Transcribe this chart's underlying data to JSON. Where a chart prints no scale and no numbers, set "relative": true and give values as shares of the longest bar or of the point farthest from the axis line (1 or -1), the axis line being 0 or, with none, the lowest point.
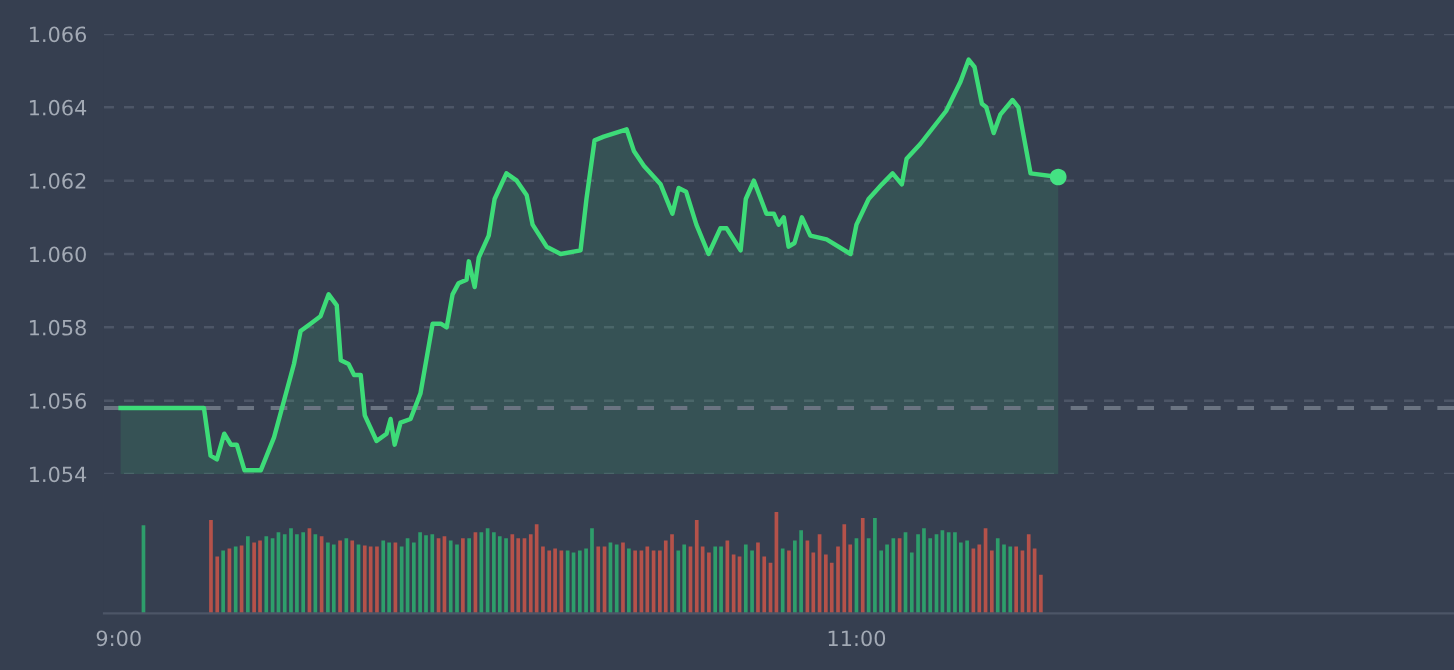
{
  "chart_data": [
    {
      "type": "area",
      "xlim": [
        8.96,
        12.62
      ],
      "ylim": [
        1.054,
        1.066
      ],
      "yticks": [
        1.054,
        1.056,
        1.058,
        {
          "value": 1.06,
          "label": "1.060"
        },
        1.062,
        1.064,
        1.066
      ],
      "tick_labels": "y",
      "grid": "y",
      "ref_lines": [
        {
          "axis": "y",
          "value": 1.0558,
          "color": "#6b7482",
          "line_style": "dashed"
        }
      ],
      "series": [
        {
          "color": "#3ddc78",
          "x": [
            9.005,
            9.231,
            9.249,
            9.266,
            9.286,
            9.304,
            9.32,
            9.341,
            9.385,
            9.421,
            9.475,
            9.493,
            9.52,
            9.547,
            9.569,
            9.591,
            9.602,
            9.623,
            9.638,
            9.656,
            9.667,
            9.699,
            9.726,
            9.737,
            9.748,
            9.764,
            9.791,
            9.818,
            9.851,
            9.873,
            9.889,
            9.905,
            9.921,
            9.943,
            9.949,
            9.965,
            9.976,
            10.003,
            10.019,
            10.051,
            10.079,
            10.106,
            10.122,
            10.16,
            10.198,
            10.252,
            10.268,
            10.29,
            10.315,
            10.377,
            10.397,
            10.424,
            10.469,
            10.501,
            10.518,
            10.538,
            10.566,
            10.599,
            10.631,
            10.648,
            10.686,
            10.7,
            10.722,
            10.756,
            10.776,
            10.789,
            10.803,
            10.816,
            10.832,
            10.852,
            10.875,
            10.919,
            10.984,
            11.0,
            11.033,
            11.069,
            11.098,
            11.123,
            11.136,
            11.173,
            11.243,
            11.282,
            11.304,
            11.32,
            11.34,
            11.352,
            11.372,
            11.39,
            11.423,
            11.439,
            11.472,
            11.547
          ],
          "values": [
            1.0558,
            1.0558,
            1.0545,
            1.0544,
            1.0551,
            1.0548,
            1.0548,
            1.0541,
            1.0541,
            1.055,
            1.057,
            1.0579,
            1.0581,
            1.0583,
            1.0589,
            1.0586,
            1.0571,
            1.057,
            1.0567,
            1.0567,
            1.0556,
            1.0549,
            1.0551,
            1.0555,
            1.0548,
            1.0554,
            1.0555,
            1.0562,
            1.0581,
            1.0581,
            1.058,
            1.0589,
            1.0592,
            1.0593,
            1.0598,
            1.0591,
            1.0599,
            1.0605,
            1.0615,
            1.0622,
            1.062,
            1.0616,
            1.0608,
            1.0602,
            1.06,
            1.0601,
            1.0615,
            1.0631,
            1.0632,
            1.0634,
            1.0628,
            1.0624,
            1.0619,
            1.0611,
            1.0618,
            1.0617,
            1.0608,
            1.06,
            1.0607,
            1.0607,
            1.0601,
            1.0615,
            1.062,
            1.0611,
            1.0611,
            1.0608,
            1.061,
            1.0602,
            1.0603,
            1.061,
            1.0605,
            1.0604,
            1.06,
            1.0608,
            1.0615,
            1.0619,
            1.0622,
            1.0619,
            1.0626,
            1.063,
            1.0639,
            1.0647,
            1.0653,
            1.0651,
            1.0641,
            1.064,
            1.0633,
            1.0638,
            1.0642,
            1.064,
            1.0622,
            1.0621
          ]
        },
        {
          "type": "scatter",
          "color": "#44e283",
          "x": [
            11.547
          ],
          "values": [
            1.0621
          ]
        }
      ]
    },
    {
      "type": "bar",
      "relative": true,
      "xlim": [
        8.96,
        12.62
      ],
      "xticks": [
        {
          "value": 9,
          "label": "9:00"
        },
        {
          "value": 11,
          "label": "11:00"
        }
      ],
      "tick_labels": "x",
      "x": [
        9.067,
        9.25,
        9.267,
        9.283,
        9.3,
        9.317,
        9.333,
        9.35,
        9.367,
        9.383,
        9.4,
        9.417,
        9.433,
        9.45,
        9.467,
        9.483,
        9.5,
        9.517,
        9.533,
        9.55,
        9.567,
        9.583,
        9.6,
        9.617,
        9.633,
        9.65,
        9.667,
        9.683,
        9.7,
        9.717,
        9.733,
        9.75,
        9.767,
        9.783,
        9.8,
        9.817,
        9.833,
        9.85,
        9.867,
        9.883,
        9.9,
        9.917,
        9.933,
        9.95,
        9.967,
        9.983,
        10.0,
        10.017,
        10.033,
        10.05,
        10.067,
        10.083,
        10.1,
        10.117,
        10.133,
        10.15,
        10.167,
        10.183,
        10.2,
        10.217,
        10.233,
        10.25,
        10.267,
        10.283,
        10.3,
        10.317,
        10.333,
        10.35,
        10.367,
        10.383,
        10.4,
        10.417,
        10.433,
        10.45,
        10.467,
        10.483,
        10.5,
        10.517,
        10.533,
        10.55,
        10.567,
        10.583,
        10.6,
        10.617,
        10.633,
        10.65,
        10.667,
        10.683,
        10.7,
        10.717,
        10.733,
        10.75,
        10.767,
        10.783,
        10.8,
        10.817,
        10.833,
        10.85,
        10.867,
        10.883,
        10.9,
        10.917,
        10.933,
        10.95,
        10.967,
        10.983,
        11.0,
        11.017,
        11.033,
        11.05,
        11.067,
        11.083,
        11.1,
        11.117,
        11.133,
        11.15,
        11.167,
        11.183,
        11.2,
        11.217,
        11.233,
        11.25,
        11.267,
        11.283,
        11.3,
        11.317,
        11.333,
        11.35,
        11.367,
        11.383,
        11.4,
        11.417,
        11.433,
        11.45,
        11.467,
        11.483,
        11.5
      ],
      "values": [
        0.87,
        0.92,
        0.56,
        0.62,
        0.64,
        0.66,
        0.67,
        0.76,
        0.7,
        0.72,
        0.76,
        0.74,
        0.8,
        0.78,
        0.84,
        0.78,
        0.8,
        0.84,
        0.78,
        0.76,
        0.7,
        0.68,
        0.72,
        0.74,
        0.72,
        0.68,
        0.67,
        0.66,
        0.66,
        0.72,
        0.7,
        0.7,
        0.66,
        0.74,
        0.7,
        0.8,
        0.77,
        0.78,
        0.74,
        0.76,
        0.72,
        0.68,
        0.74,
        0.74,
        0.8,
        0.8,
        0.84,
        0.8,
        0.76,
        0.74,
        0.78,
        0.74,
        0.74,
        0.78,
        0.88,
        0.66,
        0.62,
        0.64,
        0.62,
        0.62,
        0.6,
        0.62,
        0.64,
        0.84,
        0.66,
        0.66,
        0.7,
        0.68,
        0.7,
        0.64,
        0.62,
        0.62,
        0.66,
        0.62,
        0.62,
        0.72,
        0.78,
        0.62,
        0.68,
        0.66,
        0.92,
        0.66,
        0.6,
        0.66,
        0.66,
        0.72,
        0.58,
        0.56,
        0.68,
        0.62,
        0.7,
        0.56,
        0.5,
        1,
        0.64,
        0.62,
        0.72,
        0.82,
        0.72,
        0.6,
        0.78,
        0.58,
        0.5,
        0.66,
        0.88,
        0.68,
        0.74,
        0.94,
        0.74,
        0.94,
        0.62,
        0.68,
        0.74,
        0.74,
        0.8,
        0.6,
        0.78,
        0.84,
        0.74,
        0.78,
        0.82,
        0.8,
        0.8,
        0.7,
        0.72,
        0.64,
        0.68,
        0.84,
        0.62,
        0.74,
        0.68,
        0.66,
        0.66,
        0.62,
        0.78,
        0.64,
        0.38
      ],
      "colors": [
        "#2e9e6b",
        "#b5524a",
        "#b5524a",
        "#2e9e6b",
        "#b5524a",
        "#2e9e6b",
        "#b5524a",
        "#2e9e6b",
        "#b5524a",
        "#b5524a",
        "#2e9e6b",
        "#2e9e6b",
        "#2e9e6b",
        "#2e9e6b",
        "#2e9e6b",
        "#2e9e6b",
        "#2e9e6b",
        "#b5524a",
        "#2e9e6b",
        "#b5524a",
        "#2e9e6b",
        "#2e9e6b",
        "#b5524a",
        "#2e9e6b",
        "#b5524a",
        "#2e9e6b",
        "#b5524a",
        "#b5524a",
        "#b5524a",
        "#2e9e6b",
        "#2e9e6b",
        "#b5524a",
        "#2e9e6b",
        "#2e9e6b",
        "#2e9e6b",
        "#2e9e6b",
        "#2e9e6b",
        "#2e9e6b",
        "#b5524a",
        "#b5524a",
        "#2e9e6b",
        "#2e9e6b",
        "#b5524a",
        "#2e9e6b",
        "#b5524a",
        "#2e9e6b",
        "#2e9e6b",
        "#2e9e6b",
        "#2e9e6b",
        "#2e9e6b",
        "#b5524a",
        "#b5524a",
        "#b5524a",
        "#b5524a",
        "#b5524a",
        "#b5524a",
        "#b5524a",
        "#b5524a",
        "#b5524a",
        "#2e9e6b",
        "#2e9e6b",
        "#2e9e6b",
        "#2e9e6b",
        "#2e9e6b",
        "#b5524a",
        "#b5524a",
        "#2e9e6b",
        "#2e9e6b",
        "#b5524a",
        "#2e9e6b",
        "#b5524a",
        "#b5524a",
        "#b5524a",
        "#b5524a",
        "#b5524a",
        "#b5524a",
        "#b5524a",
        "#2e9e6b",
        "#2e9e6b",
        "#b5524a",
        "#b5524a",
        "#b5524a",
        "#b5524a",
        "#2e9e6b",
        "#2e9e6b",
        "#b5524a",
        "#b5524a",
        "#b5524a",
        "#2e9e6b",
        "#2e9e6b",
        "#b5524a",
        "#b5524a",
        "#b5524a",
        "#b5524a",
        "#2e9e6b",
        "#b5524a",
        "#2e9e6b",
        "#2e9e6b",
        "#b5524a",
        "#b5524a",
        "#b5524a",
        "#b5524a",
        "#b5524a",
        "#b5524a",
        "#b5524a",
        "#b5524a",
        "#2e9e6b",
        "#b5524a",
        "#2e9e6b",
        "#2e9e6b",
        "#2e9e6b",
        "#2e9e6b",
        "#2e9e6b",
        "#b5524a",
        "#2e9e6b",
        "#2e9e6b",
        "#2e9e6b",
        "#2e9e6b",
        "#2e9e6b",
        "#2e9e6b",
        "#2e9e6b",
        "#2e9e6b",
        "#2e9e6b",
        "#2e9e6b",
        "#2e9e6b",
        "#b5524a",
        "#b5524a",
        "#b5524a",
        "#b5524a",
        "#2e9e6b",
        "#2e9e6b",
        "#2e9e6b",
        "#b5524a",
        "#b5524a",
        "#b5524a",
        "#b5524a",
        "#b5524a"
      ]
    }
  ]
}
